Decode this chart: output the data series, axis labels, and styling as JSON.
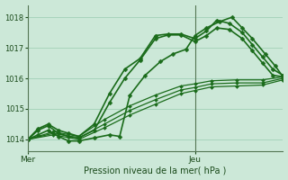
{
  "background_color": "#cce8d8",
  "grid_color": "#99ccb0",
  "line_color": "#1a6b1a",
  "marker_color": "#1a6b1a",
  "axis_label": "Pression niveau de la mer( hPa )",
  "xtick_labels": [
    "Mer",
    "Jeu"
  ],
  "xtick_positions": [
    0.0,
    0.655
  ],
  "ylim": [
    1013.6,
    1018.4
  ],
  "yticks": [
    1014,
    1015,
    1016,
    1017,
    1018
  ],
  "xlim": [
    0.0,
    1.0
  ],
  "vline_x": 0.655,
  "series": [
    {
      "x": [
        0.0,
        0.04,
        0.08,
        0.12,
        0.16,
        0.2,
        0.26,
        0.32,
        0.38,
        0.44,
        0.5,
        0.55,
        0.6,
        0.655,
        0.7,
        0.74,
        0.79,
        0.84,
        0.88,
        0.92,
        0.96,
        1.0
      ],
      "y": [
        1014.0,
        1014.35,
        1014.5,
        1014.3,
        1014.2,
        1014.1,
        1014.5,
        1015.5,
        1016.3,
        1016.65,
        1017.4,
        1017.45,
        1017.45,
        1017.3,
        1017.55,
        1017.9,
        1017.8,
        1017.5,
        1017.1,
        1016.7,
        1016.3,
        1016.1
      ],
      "lw": 1.2
    },
    {
      "x": [
        0.0,
        0.04,
        0.08,
        0.12,
        0.16,
        0.2,
        0.26,
        0.32,
        0.38,
        0.44,
        0.5,
        0.55,
        0.6,
        0.655,
        0.7,
        0.74,
        0.79,
        0.84,
        0.88,
        0.92,
        0.96,
        1.0
      ],
      "y": [
        1014.0,
        1014.3,
        1014.45,
        1014.2,
        1014.1,
        1014.05,
        1014.3,
        1015.2,
        1016.0,
        1016.6,
        1017.3,
        1017.42,
        1017.42,
        1017.2,
        1017.4,
        1017.65,
        1017.6,
        1017.3,
        1016.9,
        1016.5,
        1016.1,
        1016.05
      ],
      "lw": 1.2
    },
    {
      "x": [
        0.0,
        0.04,
        0.08,
        0.12,
        0.16,
        0.2,
        0.26,
        0.32,
        0.36,
        0.4,
        0.46,
        0.52,
        0.57,
        0.62,
        0.655,
        0.7,
        0.75,
        0.8,
        0.84,
        0.88,
        0.93,
        0.97,
        1.0
      ],
      "y": [
        1014.0,
        1014.15,
        1014.3,
        1014.1,
        1013.95,
        1013.95,
        1014.05,
        1014.15,
        1014.1,
        1015.45,
        1016.1,
        1016.55,
        1016.8,
        1016.95,
        1017.4,
        1017.65,
        1017.85,
        1018.0,
        1017.65,
        1017.3,
        1016.8,
        1016.4,
        1016.05
      ],
      "lw": 1.2
    },
    {
      "x": [
        0.0,
        0.1,
        0.2,
        0.3,
        0.4,
        0.5,
        0.6,
        0.655,
        0.72,
        0.82,
        0.92,
        1.0
      ],
      "y": [
        1014.0,
        1014.25,
        1014.1,
        1014.65,
        1015.1,
        1015.45,
        1015.75,
        1015.82,
        1015.92,
        1015.95,
        1015.95,
        1016.05
      ],
      "lw": 0.9
    },
    {
      "x": [
        0.0,
        0.1,
        0.2,
        0.3,
        0.4,
        0.5,
        0.6,
        0.655,
        0.72,
        0.82,
        0.92,
        1.0
      ],
      "y": [
        1014.0,
        1014.2,
        1014.05,
        1014.5,
        1014.95,
        1015.3,
        1015.62,
        1015.7,
        1015.82,
        1015.85,
        1015.85,
        1016.0
      ],
      "lw": 0.9
    },
    {
      "x": [
        0.0,
        0.1,
        0.2,
        0.3,
        0.4,
        0.5,
        0.6,
        0.655,
        0.72,
        0.82,
        0.92,
        1.0
      ],
      "y": [
        1014.0,
        1014.15,
        1014.0,
        1014.38,
        1014.8,
        1015.15,
        1015.5,
        1015.6,
        1015.72,
        1015.75,
        1015.78,
        1015.95
      ],
      "lw": 0.9
    }
  ]
}
